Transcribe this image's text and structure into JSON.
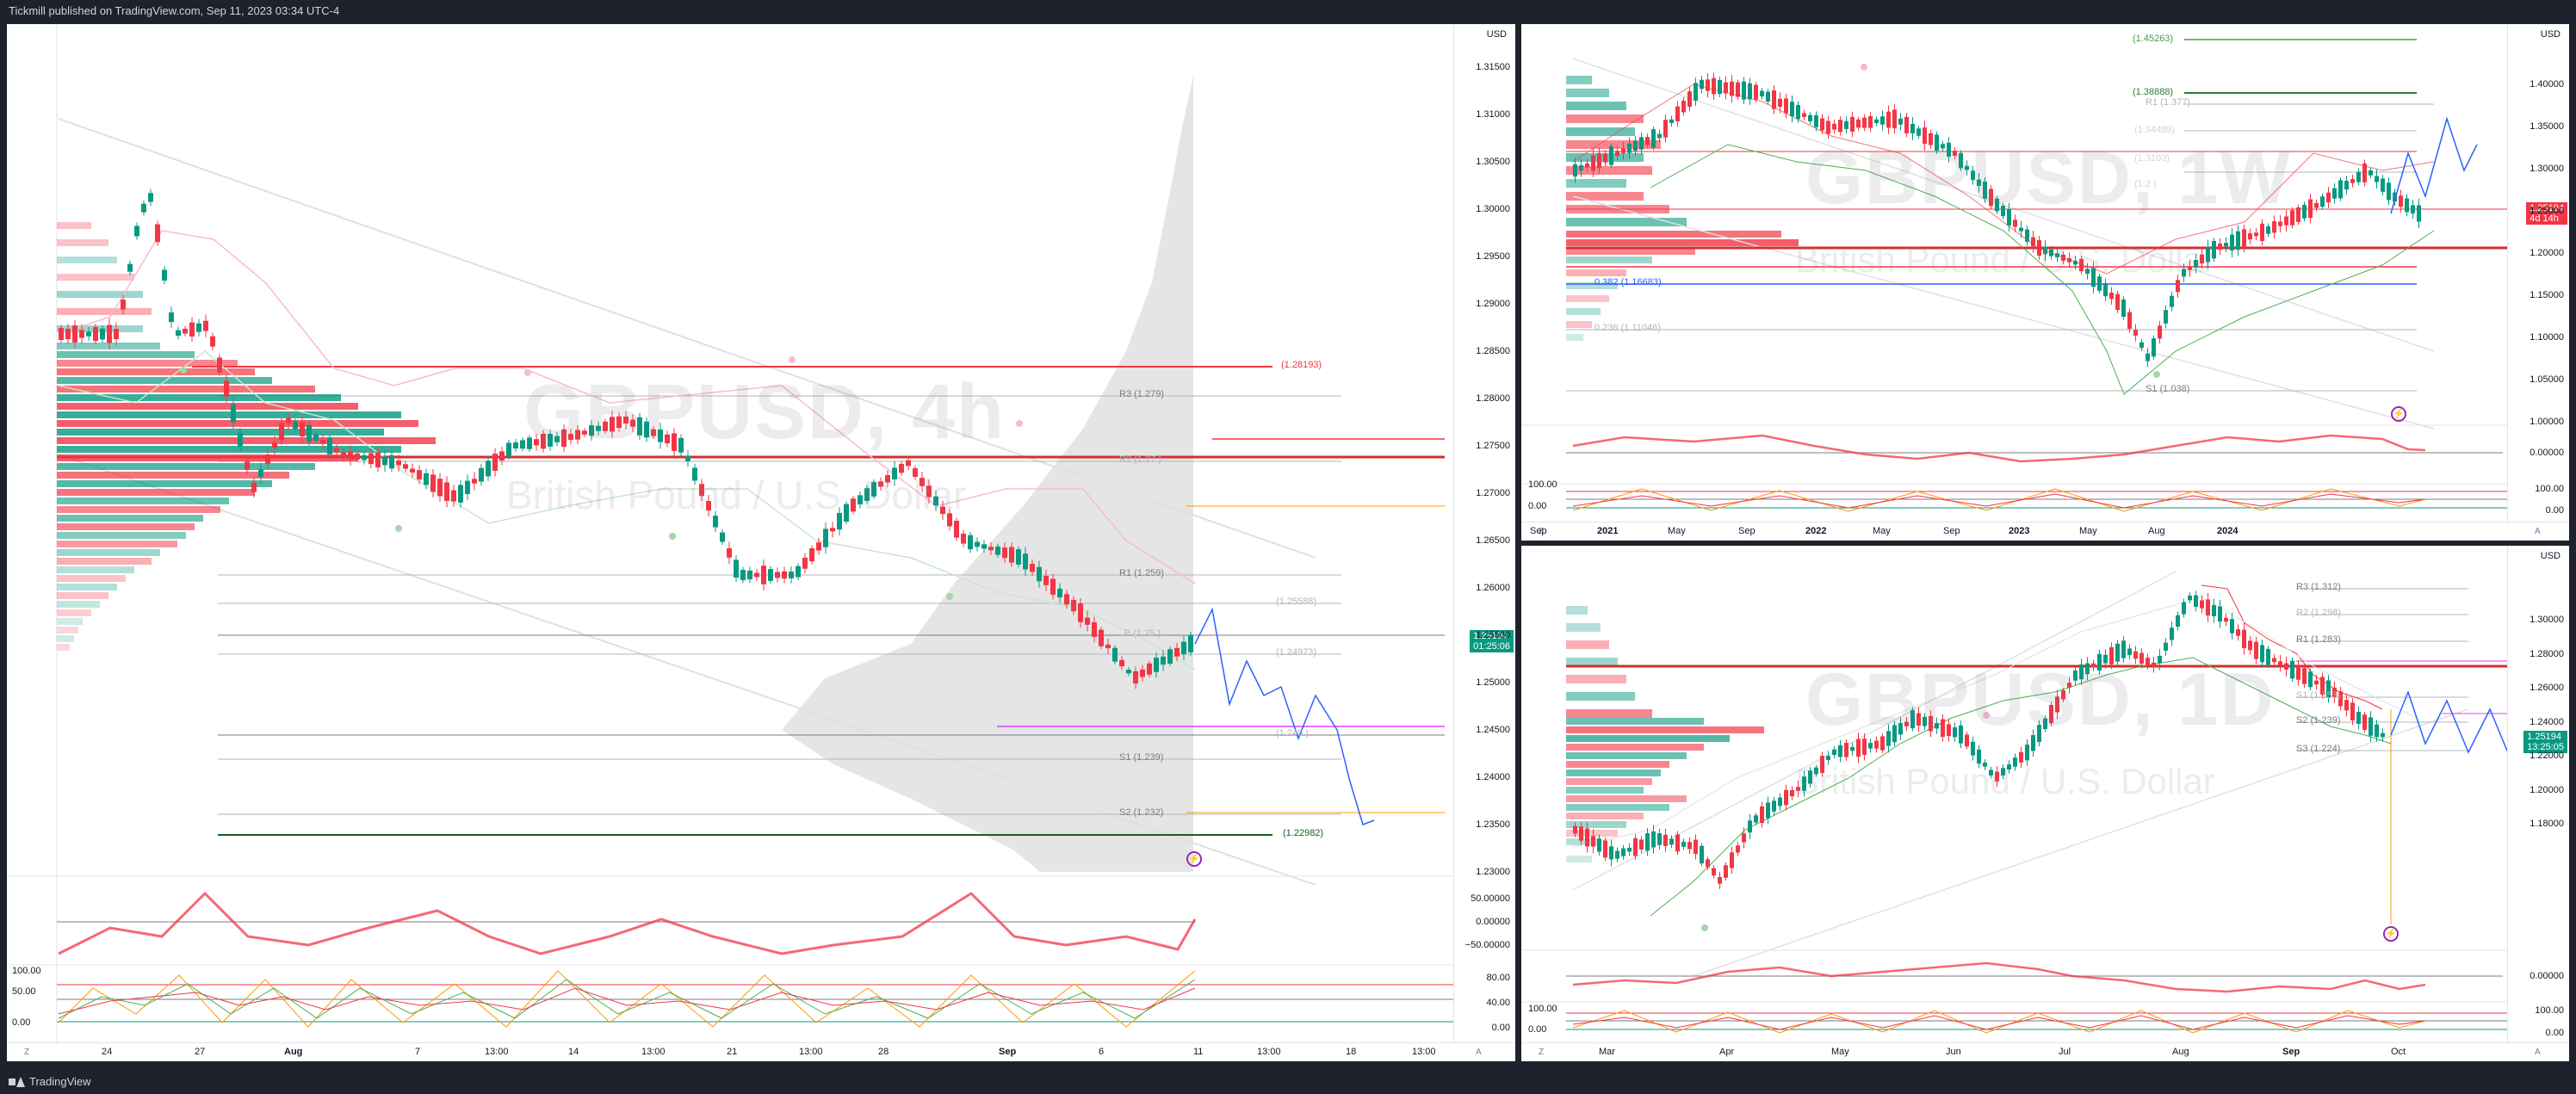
{
  "header": {
    "published": "Tickmill published on TradingView.com, Sep 11, 2023 03:34 UTC-4"
  },
  "footer": {
    "brand": "TradingView"
  },
  "colors": {
    "up": "#089981",
    "down": "#f23645",
    "forecast": "#2962ff",
    "pivot": "#9c27b0"
  },
  "left_chart": {
    "symbol_watermark": "GBPUSD, 4h",
    "name_watermark": "British Pound / U.S. Dollar",
    "currency": "USD",
    "price_ticks": [
      "1.31500",
      "1.31000",
      "1.30500",
      "1.30000",
      "1.29500",
      "1.29000",
      "1.28500",
      "1.28000",
      "1.27500",
      "1.27000",
      "1.26500",
      "1.26000",
      "1.25500",
      "1.25000",
      "1.24500",
      "1.24000",
      "1.23500",
      "1.23000"
    ],
    "last_price": "1.25194",
    "countdown": "01:25:06",
    "levels": [
      "(1.28193)",
      "R3 (1.279)",
      "R2 (1.27 )",
      "R1 (1.259)",
      "(1.25588)",
      "P (1.25 )",
      "(1.24973)",
      "(1.240 )",
      "S1 (1.239)",
      "S2 (1.232)",
      "(1.22982)"
    ],
    "osc_ticks": [
      "50.00000",
      "0.00000",
      "−50.00000"
    ],
    "stoch_ticks_left": [
      "100.00",
      "50.00",
      "0.00"
    ],
    "stoch_ticks_right": [
      "80.00",
      "40.00",
      "0.00"
    ],
    "time_labels": [
      "24",
      "27",
      "Aug",
      "7",
      "13:00",
      "14",
      "13:00",
      "21",
      "13:00",
      "28",
      "Sep",
      "6",
      "11",
      "13:00",
      "18",
      "13:00"
    ],
    "corner_left": "Z",
    "corner_right": "A"
  },
  "weekly_chart": {
    "symbol_watermark": "GBPUSD, 1W",
    "name_watermark": "British Pound / U.S. Dollar",
    "currency": "USD",
    "price_ticks": [
      "1.40000",
      "1.35000",
      "1.30000",
      "1.25000",
      "1.20000",
      "1.15000",
      "1.10000",
      "1.05000",
      "1.00000"
    ],
    "last_price": "1.25194",
    "countdown": "4d 14h",
    "levels": [
      "(1.45263)",
      "(1.38888)",
      "R1 (1.377)",
      "(1.34489)",
      "(1.3103)",
      "(1.2 )",
      "0.382 (1.16683)",
      "0.236 (1.11046)",
      "S1 (1.038)"
    ],
    "osc_ticks": [
      "0.00000"
    ],
    "stoch_ticks": [
      "100.00",
      "0.00"
    ],
    "time_labels": [
      "Sep",
      "2021",
      "May",
      "Sep",
      "2022",
      "May",
      "Sep",
      "2023",
      "May",
      "Aug",
      "2024"
    ],
    "corner_left": "Z",
    "corner_right": "A"
  },
  "daily_chart": {
    "symbol_watermark": "GBPUSD, 1D",
    "name_watermark": "British Pound / U.S. Dollar",
    "currency": "USD",
    "price_ticks": [
      "1.30000",
      "1.28000",
      "1.26000",
      "1.24000",
      "1.22000",
      "1.20000",
      "1.18000"
    ],
    "last_price": "1.25194",
    "countdown": "13:25:05",
    "levels": [
      "R3 (1.312)",
      "R2 (1.298)",
      "R1 (1.283)",
      "S1 (1.253)",
      "S2 (1.239)",
      "S3 (1.224)"
    ],
    "osc_ticks": [
      "0.00000"
    ],
    "stoch_ticks": [
      "100.00",
      "0.00"
    ],
    "time_labels": [
      "Mar",
      "Apr",
      "May",
      "Jun",
      "Jul",
      "Aug",
      "Sep",
      "Oct"
    ],
    "corner_left": "Z",
    "corner_right": "A"
  }
}
